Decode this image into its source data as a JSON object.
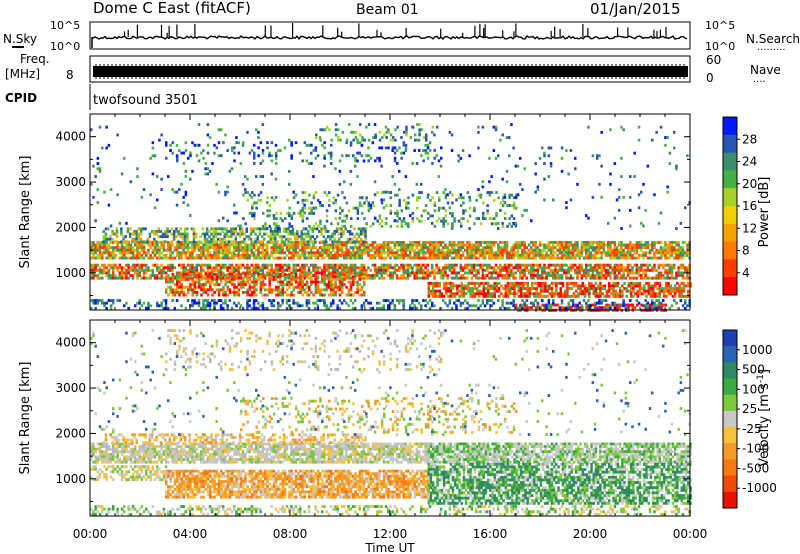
{
  "header": {
    "title": "Dome C East (fitACF)",
    "beam": "Beam 01",
    "date": "01/Jan/2015"
  },
  "sky_panel": {
    "left_label": "N.Sky",
    "right_label": "N.Search",
    "right_dots": ".........",
    "ticks_left": [
      "10^5",
      "10^0"
    ],
    "ticks_right": [
      "10^5",
      "10^0"
    ]
  },
  "freq_panel": {
    "left_label_1": "Freq.",
    "left_label_2": "[MHz]",
    "left_tick": "8",
    "right_label": "Nave",
    "right_dots": "....",
    "right_ticks": [
      "60",
      "0"
    ]
  },
  "cpid": {
    "label": "CPID",
    "value": "twofsound 3501"
  },
  "x_axis": {
    "label": "Time UT",
    "ticks": [
      "00:00",
      "04:00",
      "08:00",
      "12:00",
      "16:00",
      "20:00",
      "00:00"
    ]
  },
  "power_panel": {
    "ylabel": "Slant Range [km]",
    "yticks": [
      "1000",
      "2000",
      "3000",
      "4000"
    ],
    "colorbar_label": "Power [dB]",
    "colorbar_ticks": [
      "4",
      "8",
      "12",
      "16",
      "20",
      "24",
      "28"
    ],
    "colorbar_colors": [
      "#0018ff",
      "#2b55b3",
      "#3c8d6a",
      "#46b046",
      "#a6d228",
      "#f0d000",
      "#f5a300",
      "#ff7a00",
      "#ff3d00",
      "#ff0000"
    ]
  },
  "velocity_panel": {
    "ylabel": "Slant Range [km]",
    "yticks": [
      "1000",
      "2000",
      "3000",
      "4000"
    ],
    "colorbar_label": "Velocity [m s",
    "colorbar_sup": "-1",
    "colorbar_label_end": "]",
    "colorbar_ticks": [
      "1000",
      "500",
      "100",
      "25",
      "-25",
      "-100",
      "-500",
      "-1000"
    ],
    "colorbar_colors": [
      "#1d3fb0",
      "#2a64b3",
      "#2f8a62",
      "#3aa845",
      "#7cc83a",
      "#c8c8c8",
      "#f5c23a",
      "#f59a28",
      "#f57a12",
      "#f04a08",
      "#e81000"
    ]
  },
  "chart_data": [
    {
      "type": "heatmap",
      "title": "Power",
      "xlabel": "Time UT",
      "ylabel": "Slant Range [km]",
      "xlim": [
        "00:00",
        "24:00"
      ],
      "ylim": [
        180,
        4500
      ],
      "colorbar": {
        "label": "Power [dB]",
        "range": [
          0,
          30
        ],
        "ticks": [
          4,
          8,
          12,
          16,
          20,
          24,
          28
        ]
      },
      "grid": false
    },
    {
      "type": "heatmap",
      "title": "Velocity",
      "xlabel": "Time UT",
      "ylabel": "Slant Range [km]",
      "xlim": [
        "00:00",
        "24:00"
      ],
      "ylim": [
        180,
        4500
      ],
      "colorbar": {
        "label": "Velocity [m s-1]",
        "ticks": [
          1000,
          500,
          100,
          25,
          -25,
          -100,
          -500,
          -1000
        ]
      },
      "grid": false
    }
  ]
}
